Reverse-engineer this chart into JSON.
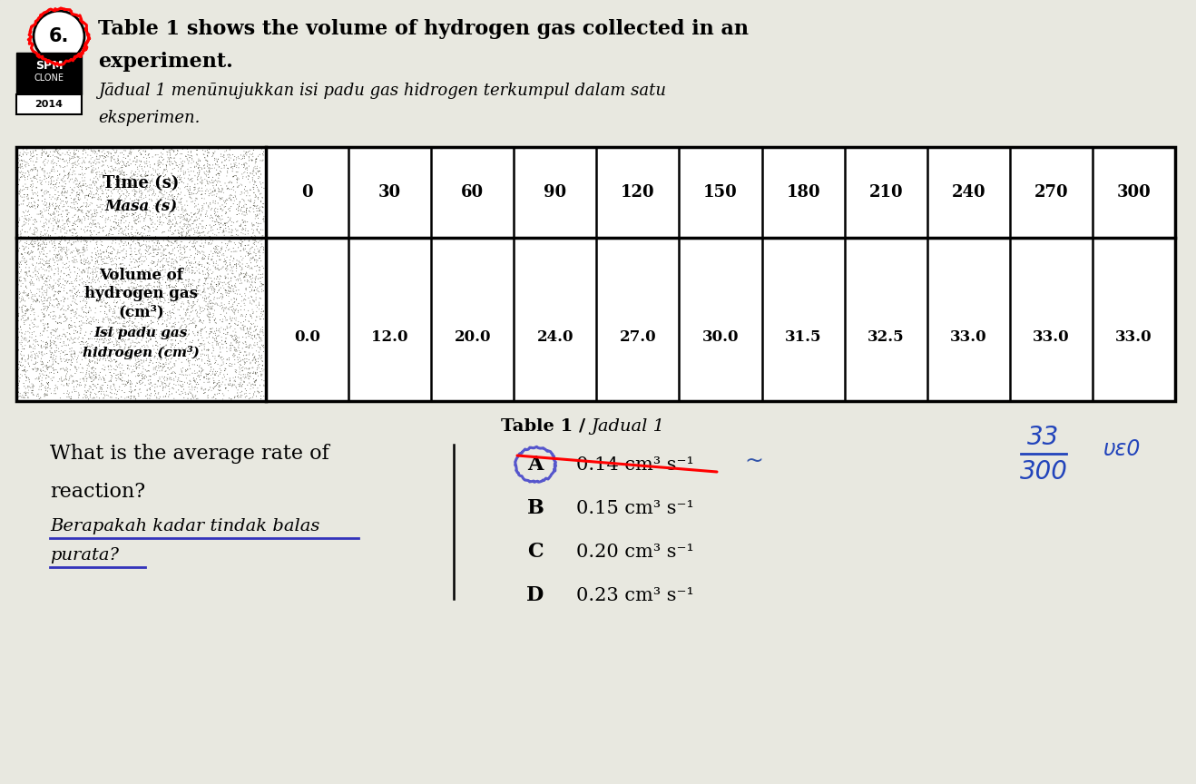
{
  "bg_color": "#d4d4d4",
  "title_line1": "Table 1 shows the volume of hydrogen gas collected in an",
  "title_line2": "experiment.",
  "subtitle_italic": "Jādual 1 menūnujukkan isi padu gas hidrogen terkumpul dalam satu",
  "subtitle_italic2": "eksperimen.",
  "table_caption_bold": "Table 1 / ",
  "table_caption_italic": "Jadual 1",
  "time_header_en": "Time (s)",
  "time_header_ms": "Masa (s)",
  "vol_header_line1": "Volume of",
  "vol_header_line2": "hydrogen gas",
  "vol_header_line3": "(cm³)",
  "vol_header_ms1": "Isi padu gas",
  "vol_header_ms2": "hidrogen (cm³)",
  "time_values": [
    "0",
    "30",
    "60",
    "90",
    "120",
    "150",
    "180",
    "210",
    "240",
    "270",
    "300"
  ],
  "volume_values": [
    "0.0",
    "12.0",
    "20.0",
    "24.0",
    "27.0",
    "30.0",
    "31.5",
    "32.5",
    "33.0",
    "33.0",
    "33.0"
  ],
  "question_en_line1": "What is the average rate of",
  "question_en_line2": "reaction?",
  "question_ms_line1": "Berapakah kadar tindak balas",
  "question_ms_line2": "purata?",
  "option_labels": [
    "A",
    "B",
    "C",
    "D"
  ],
  "option_values": [
    "0.14 cm³ s⁻¹",
    "0.15 cm³ s⁻¹",
    "0.20 cm³ s⁻¹",
    "0.23 cm³ s⁻¹"
  ],
  "header_bg": "#5a5a4a",
  "header_noise_color": "#3a3a2a",
  "table_bg": "#f0f0f0"
}
